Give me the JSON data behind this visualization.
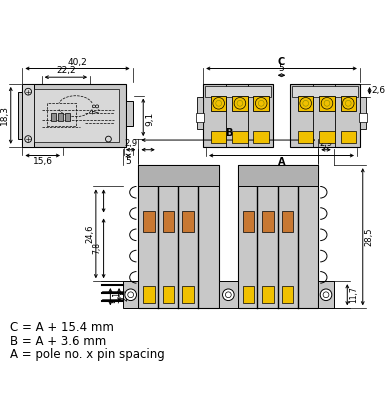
{
  "bg_color": "#ffffff",
  "line_color": "#000000",
  "gray_fill": "#c8c8c8",
  "gray_dark": "#909090",
  "gray_med": "#b0b0b0",
  "gray_light": "#d8d8d8",
  "yellow_fill": "#f0c000",
  "orange_fill": "#c87832",
  "annotations": [
    "C = A + 15.4 mm",
    "B = A + 3.6 mm",
    "A = pole no. x pin spacing"
  ]
}
